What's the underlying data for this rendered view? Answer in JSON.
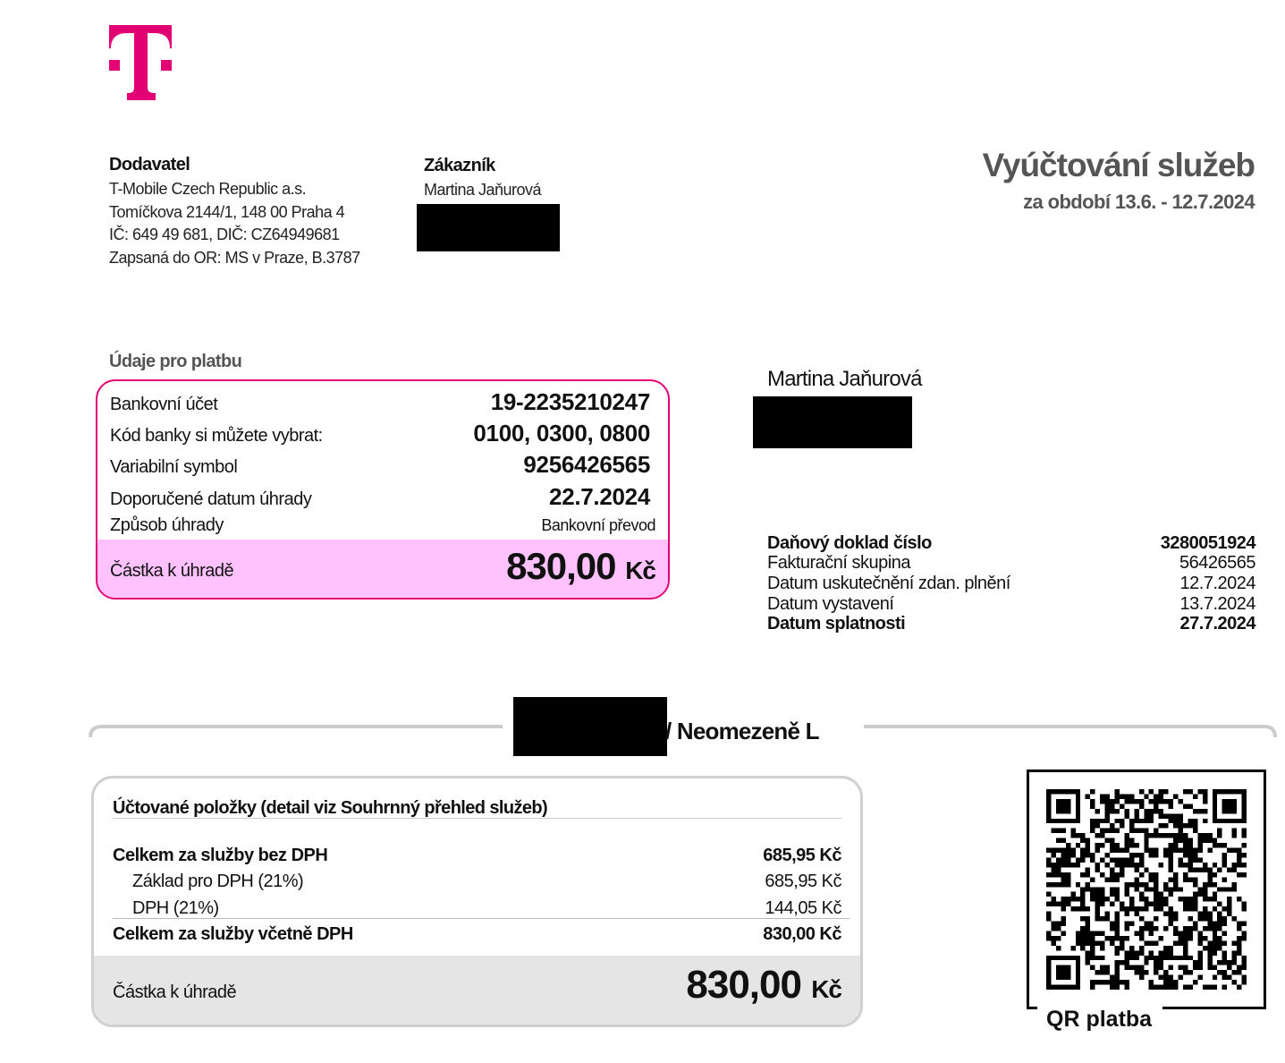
{
  "brand": {
    "logo": "T",
    "color": "#e20074"
  },
  "supplier": {
    "heading": "Dodavatel",
    "lines": [
      "T-Mobile Czech Republic a.s.",
      "Tomíčkova 2144/1, 148 00 Praha 4",
      "IČ: 649 49 681, DIČ: CZ64949681",
      "Zapsaná do OR: MS v Praze, B.3787"
    ]
  },
  "customer": {
    "heading": "Zákazník",
    "name": "Martina Jaňurová"
  },
  "title": {
    "main": "Vyúčtování služeb",
    "period": "za období 13.6. - 12.7.2024"
  },
  "payment": {
    "heading": "Údaje pro platbu",
    "rows": [
      {
        "label": "Bankovní účet",
        "value": "19-2235210247"
      },
      {
        "label": "Kód banky si můžete vybrat:",
        "value": "0100, 0300, 0800"
      },
      {
        "label": "Variabilní symbol",
        "value": "9256426565"
      },
      {
        "label": "Doporučené datum úhrady",
        "value": "22.7.2024"
      },
      {
        "label": "Způsob úhrady",
        "value": "Bankovní převod"
      }
    ],
    "total_label": "Částka k úhradě",
    "total_value": "830,00",
    "currency": "Kč",
    "highlight_color": "#ffc2ff"
  },
  "recipient": {
    "name": "Martina Jaňurová"
  },
  "tax_doc": {
    "rows": [
      {
        "label": "Daňový doklad číslo",
        "value": "3280051924",
        "bold": true
      },
      {
        "label": "Fakturační skupina",
        "value": "56426565",
        "bold": false
      },
      {
        "label": "Datum uskutečnění zdan. plnění",
        "value": "12.7.2024",
        "bold": false
      },
      {
        "label": "Datum vystavení",
        "value": "13.7.2024",
        "bold": false
      },
      {
        "label": "Datum splatnosti",
        "value": "27.7.2024",
        "bold": true
      }
    ]
  },
  "section": {
    "title": "/ Neomezeně L"
  },
  "summary": {
    "heading": "Účtované položky (detail viz Souhrnný přehled služeb)",
    "rows": [
      {
        "label": "Celkem za služby bez DPH",
        "value": "685,95 Kč"
      },
      {
        "label": "Základ pro DPH (21%)",
        "value": "685,95 Kč"
      },
      {
        "label": "DPH (21%)",
        "value": "144,05 Kč"
      },
      {
        "label": "Celkem za služby včetně DPH",
        "value": "830,00 Kč"
      }
    ],
    "total_label": "Částka k úhradě",
    "total_value": "830,00",
    "currency": "Kč"
  },
  "qr": {
    "label": "QR platba"
  }
}
